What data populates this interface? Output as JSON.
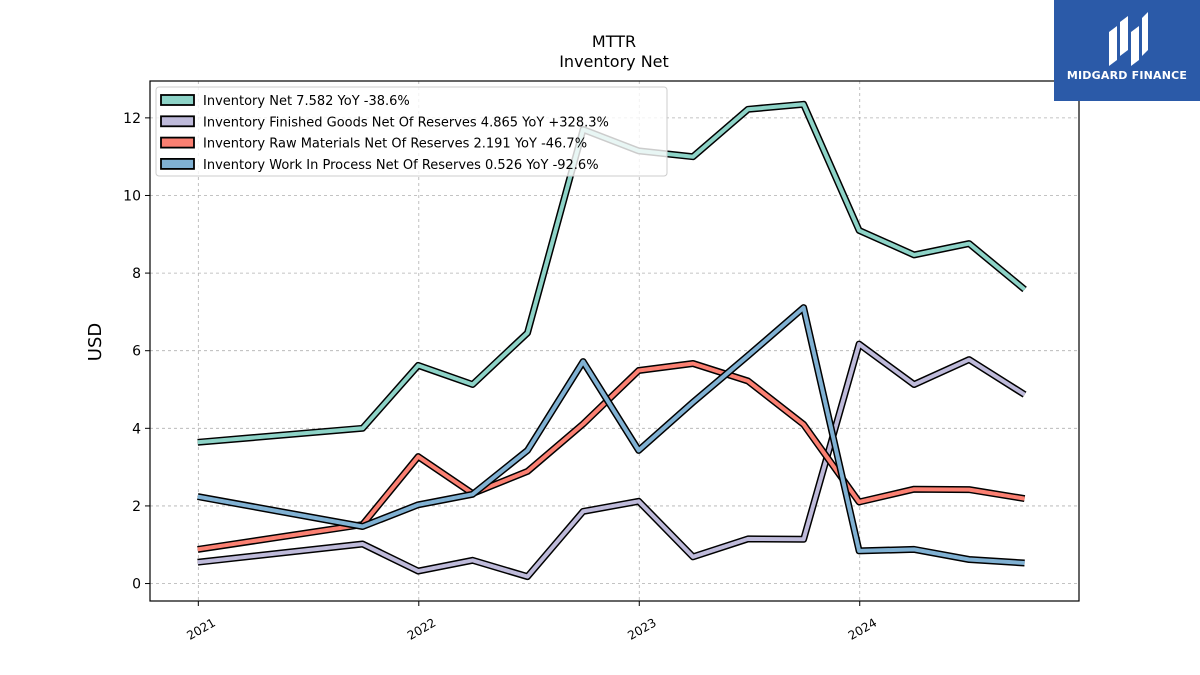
{
  "brand": {
    "name": "MIDGARD FINANCE",
    "background": "#2b5aa8"
  },
  "chart_data": {
    "type": "line",
    "title": "MTTR",
    "subtitle": "Inventory Net",
    "ylabel": "USD",
    "xlabel": "",
    "ylim": [
      -0.45,
      12.95
    ],
    "yticks": [
      0,
      2,
      4,
      6,
      8,
      10,
      12
    ],
    "xlim": [
      "2020-10-13",
      "2024-12-29"
    ],
    "xticks": [
      {
        "label": "2021",
        "date": "2021-01-01"
      },
      {
        "label": "2022",
        "date": "2022-01-01"
      },
      {
        "label": "2023",
        "date": "2023-01-01"
      },
      {
        "label": "2024",
        "date": "2024-01-01"
      }
    ],
    "grid": true,
    "legend_position": "top-left",
    "x": [
      "2020-12-31",
      "2021-09-30",
      "2021-12-31",
      "2022-03-31",
      "2022-06-30",
      "2022-09-30",
      "2022-12-31",
      "2023-03-31",
      "2023-06-30",
      "2023-09-30",
      "2023-12-31",
      "2024-03-31",
      "2024-06-30",
      "2024-09-30"
    ],
    "series": [
      {
        "name": "Inventory Net",
        "legend": "Inventory Net  7.582 YoY -38.6%",
        "color": "#8dd3c7",
        "values": [
          3.64,
          4.0,
          5.62,
          5.13,
          6.46,
          11.7,
          11.15,
          11.0,
          12.22,
          12.35,
          9.1,
          8.47,
          8.76,
          7.58
        ]
      },
      {
        "name": "Inventory Finished Goods Net Of Reserves",
        "legend": "Inventory Finished Goods Net Of Reserves  4.865 YoY +328.3%",
        "color": "#bebada",
        "values": [
          0.55,
          1.02,
          0.32,
          0.6,
          0.18,
          1.86,
          2.12,
          0.69,
          1.15,
          1.14,
          6.17,
          5.13,
          5.77,
          4.87
        ]
      },
      {
        "name": "Inventory Raw Materials Net Of Reserves",
        "legend": "Inventory Raw Materials Net Of Reserves  2.191 YoY -46.7%",
        "color": "#fb8072",
        "values": [
          0.88,
          1.52,
          3.27,
          2.32,
          2.89,
          4.11,
          5.49,
          5.67,
          5.22,
          4.1,
          2.1,
          2.43,
          2.42,
          2.19
        ]
      },
      {
        "name": "Inventory Work In Process Net Of Reserves",
        "legend": "Inventory Work In Process Net Of Reserves  0.526 YoY -92.6%",
        "color": "#80b1d3",
        "values": [
          2.24,
          1.47,
          2.03,
          2.3,
          3.43,
          5.72,
          3.43,
          4.67,
          5.87,
          7.11,
          0.84,
          0.88,
          0.62,
          0.53
        ]
      }
    ]
  }
}
